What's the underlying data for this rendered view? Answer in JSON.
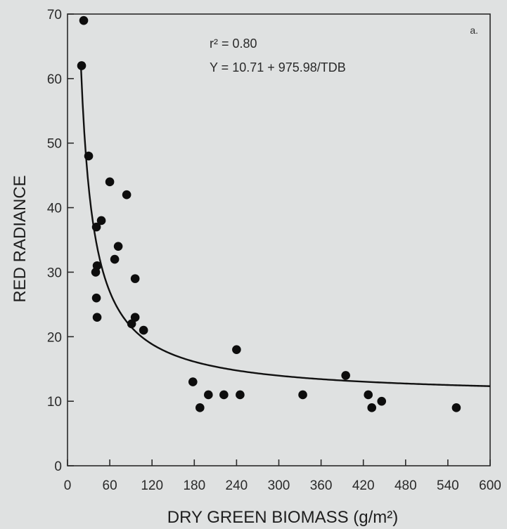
{
  "chart_data": {
    "type": "scatter",
    "panel_label": "a.",
    "xlabel": "DRY GREEN BIOMASS (g/m²)",
    "ylabel": "RED RADIANCE",
    "xlim": [
      0,
      600
    ],
    "ylim": [
      0,
      70
    ],
    "xticks": [
      0,
      60,
      120,
      180,
      240,
      300,
      360,
      420,
      480,
      540,
      600
    ],
    "yticks": [
      0,
      10,
      20,
      30,
      40,
      50,
      60,
      70
    ],
    "grid": false,
    "annotations": {
      "r2": "r² = 0.80",
      "equation": "Y = 10.71 + 975.98/TDB"
    },
    "fit": {
      "a": 10.71,
      "b": 975.98,
      "x_range": [
        19,
        600
      ]
    },
    "points": [
      {
        "x": 23,
        "y": 69
      },
      {
        "x": 20,
        "y": 62
      },
      {
        "x": 30,
        "y": 48
      },
      {
        "x": 41,
        "y": 37
      },
      {
        "x": 48,
        "y": 38
      },
      {
        "x": 60,
        "y": 44
      },
      {
        "x": 84,
        "y": 42
      },
      {
        "x": 72,
        "y": 34
      },
      {
        "x": 67,
        "y": 32
      },
      {
        "x": 42,
        "y": 31
      },
      {
        "x": 40,
        "y": 30
      },
      {
        "x": 41,
        "y": 26
      },
      {
        "x": 42,
        "y": 23
      },
      {
        "x": 96,
        "y": 29
      },
      {
        "x": 96,
        "y": 23
      },
      {
        "x": 91,
        "y": 22
      },
      {
        "x": 108,
        "y": 21
      },
      {
        "x": 178,
        "y": 13
      },
      {
        "x": 188,
        "y": 9
      },
      {
        "x": 200,
        "y": 11
      },
      {
        "x": 222,
        "y": 11
      },
      {
        "x": 240,
        "y": 18
      },
      {
        "x": 245,
        "y": 11
      },
      {
        "x": 334,
        "y": 11
      },
      {
        "x": 395,
        "y": 14
      },
      {
        "x": 427,
        "y": 11
      },
      {
        "x": 432,
        "y": 9
      },
      {
        "x": 446,
        "y": 10
      },
      {
        "x": 552,
        "y": 9
      }
    ]
  }
}
